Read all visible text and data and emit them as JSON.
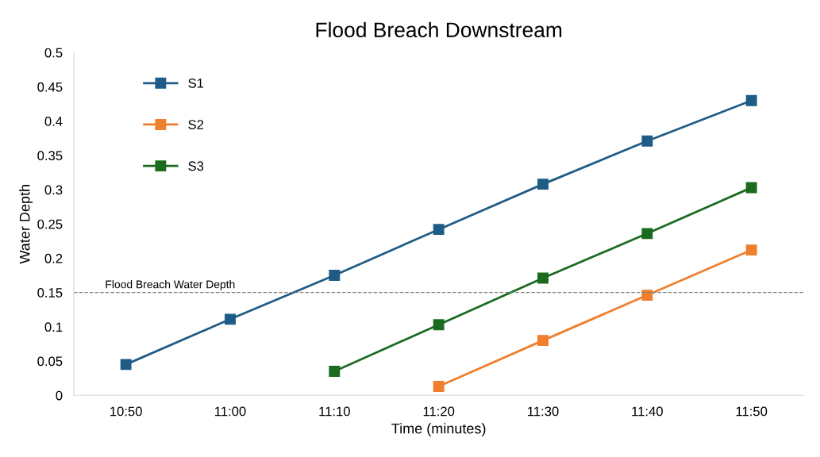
{
  "chart_data": {
    "type": "line",
    "title": "Flood Breach Downstream",
    "xlabel": "Time (minutes)",
    "ylabel": "Water Depth",
    "categories": [
      "10:50",
      "11:00",
      "11:10",
      "11:20",
      "11:30",
      "11:40",
      "11:50"
    ],
    "series": [
      {
        "name": "S1",
        "color": "#1f5c85",
        "values": [
          0.045,
          0.111,
          0.175,
          0.242,
          0.308,
          0.371,
          0.43
        ]
      },
      {
        "name": "S2",
        "color": "#f07f2d",
        "values": [
          null,
          null,
          null,
          0.013,
          0.08,
          0.146,
          0.212
        ]
      },
      {
        "name": "S3",
        "color": "#1a6b1f",
        "values": [
          null,
          null,
          0.035,
          0.103,
          0.171,
          0.236,
          0.303
        ]
      }
    ],
    "ylim": [
      0,
      0.5
    ],
    "yticks": [
      {
        "value": 0,
        "label": "0"
      },
      0.05,
      0.1,
      0.15,
      0.2,
      0.25,
      0.3,
      0.35,
      0.4,
      0.45,
      0.5
    ],
    "ref_lines": [
      {
        "axis": "y",
        "value": 0.15,
        "label": "Flood Breach Water Depth",
        "color": "#808080",
        "line_style": "dashed"
      }
    ],
    "marker": "square",
    "line_style": "solid",
    "grid": false,
    "legend": "top left"
  }
}
